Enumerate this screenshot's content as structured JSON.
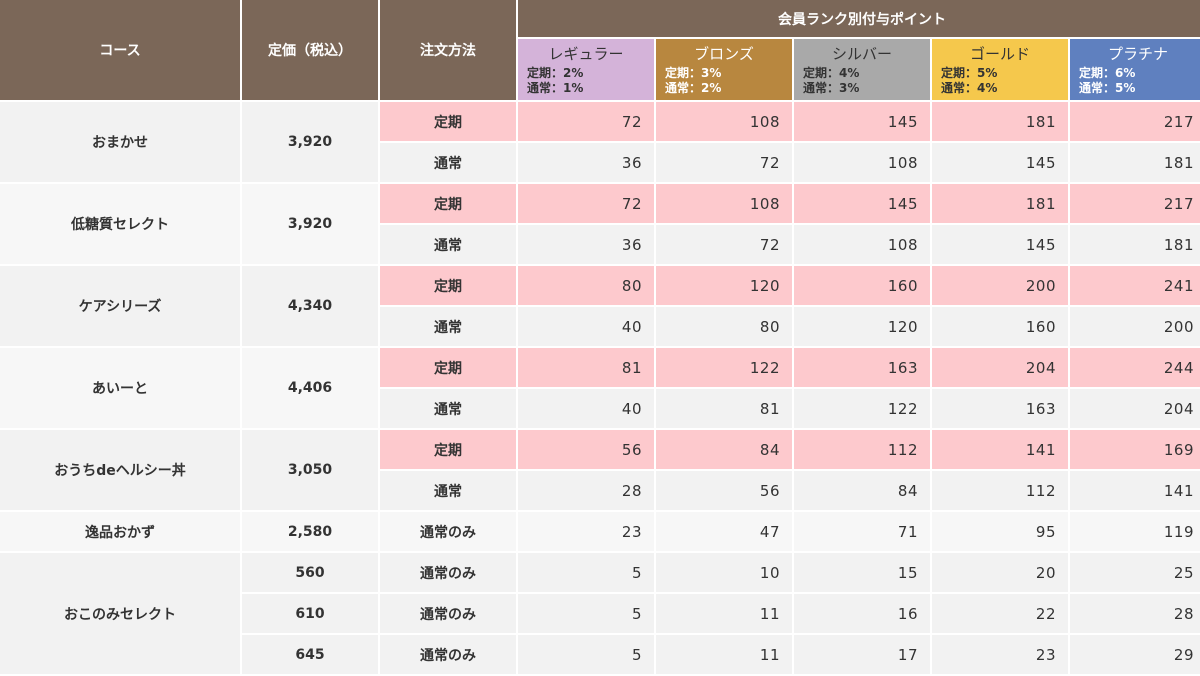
{
  "header": {
    "course": "コース",
    "price": "定価（税込）",
    "method": "注文方法",
    "rank_group": "会員ランク別付与ポイント",
    "ranks": [
      {
        "name": "レギュラー",
        "teiki": "定期：2%",
        "tsujo": "通常：1%",
        "color": "#d4b3d9"
      },
      {
        "name": "ブロンズ",
        "teiki": "定期：3%",
        "tsujo": "通常：2%",
        "color": "#b8873f"
      },
      {
        "name": "シルバー",
        "teiki": "定期：4%",
        "tsujo": "通常：3%",
        "color": "#a9a9a9"
      },
      {
        "name": "ゴールド",
        "teiki": "定期：5%",
        "tsujo": "通常：4%",
        "color": "#f5c84c"
      },
      {
        "name": "プラチナ",
        "teiki": "定期：6%",
        "tsujo": "通常：5%",
        "color": "#5f80bf"
      }
    ]
  },
  "rows": [
    {
      "course": "おまかせ",
      "price": "3,920",
      "teiki_label": "定期",
      "tsujo_label": "通常",
      "teiki": [
        "72",
        "108",
        "145",
        "181",
        "217"
      ],
      "tsujo": [
        "36",
        "72",
        "108",
        "145",
        "181"
      ]
    },
    {
      "course": "低糖質セレクト",
      "price": "3,920",
      "teiki_label": "定期",
      "tsujo_label": "通常",
      "teiki": [
        "72",
        "108",
        "145",
        "181",
        "217"
      ],
      "tsujo": [
        "36",
        "72",
        "108",
        "145",
        "181"
      ]
    },
    {
      "course": "ケアシリーズ",
      "price": "4,340",
      "teiki_label": "定期",
      "tsujo_label": "通常",
      "teiki": [
        "80",
        "120",
        "160",
        "200",
        "241"
      ],
      "tsujo": [
        "40",
        "80",
        "120",
        "160",
        "200"
      ]
    },
    {
      "course": "あいーと",
      "price": "4,406",
      "teiki_label": "定期",
      "tsujo_label": "通常",
      "teiki": [
        "81",
        "122",
        "163",
        "204",
        "244"
      ],
      "tsujo": [
        "40",
        "81",
        "122",
        "163",
        "204"
      ]
    },
    {
      "course": "おうちdeヘルシー丼",
      "price": "3,050",
      "teiki_label": "定期",
      "tsujo_label": "通常",
      "teiki": [
        "56",
        "84",
        "112",
        "141",
        "169"
      ],
      "tsujo": [
        "28",
        "56",
        "84",
        "112",
        "141"
      ]
    }
  ],
  "ippin": {
    "course": "逸品おかず",
    "price": "2,580",
    "method": "通常のみ",
    "values": [
      "23",
      "47",
      "71",
      "95",
      "119"
    ]
  },
  "okonomi": {
    "course": "おこのみセレクト",
    "rows": [
      {
        "price": "560",
        "method": "通常のみ",
        "values": [
          "5",
          "10",
          "15",
          "20",
          "25"
        ]
      },
      {
        "price": "610",
        "method": "通常のみ",
        "values": [
          "5",
          "11",
          "16",
          "22",
          "28"
        ]
      },
      {
        "price": "645",
        "method": "通常のみ",
        "values": [
          "5",
          "11",
          "17",
          "23",
          "29"
        ]
      }
    ]
  }
}
